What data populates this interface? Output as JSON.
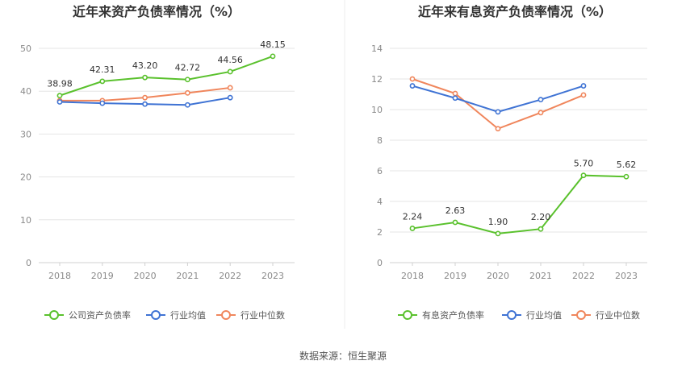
{
  "source_text": "数据来源：恒生聚源",
  "colors": {
    "company": "#5ac12d",
    "mean": "#3f73d4",
    "median": "#f0865c",
    "grid": "#e6e6e6",
    "axis": "#d0d0d0"
  },
  "chart_data": [
    {
      "type": "line",
      "title": "近年来资产负债率情况（%）",
      "categories": [
        "2018",
        "2019",
        "2020",
        "2021",
        "2022",
        "2023"
      ],
      "ylim": [
        0,
        50
      ],
      "yticks": [
        0,
        10,
        20,
        30,
        40,
        50
      ],
      "grid": true,
      "legend_placement": "bottom",
      "series": [
        {
          "name": "公司资产负债率",
          "color_key": "company",
          "values": [
            38.98,
            42.31,
            43.2,
            42.72,
            44.56,
            48.15
          ],
          "labels": [
            "38.98",
            "42.31",
            "43.20",
            "42.72",
            "44.56",
            "48.15"
          ]
        },
        {
          "name": "行业均值",
          "color_key": "mean",
          "values": [
            37.5,
            37.2,
            37.0,
            36.8,
            38.5,
            null
          ]
        },
        {
          "name": "行业中位数",
          "color_key": "median",
          "values": [
            37.8,
            37.8,
            38.5,
            39.6,
            40.8,
            null
          ]
        }
      ]
    },
    {
      "type": "line",
      "title": "近年来有息资产负债率情况（%）",
      "categories": [
        "2018",
        "2019",
        "2020",
        "2021",
        "2022",
        "2023"
      ],
      "ylim": [
        0,
        14
      ],
      "yticks": [
        0,
        2,
        4,
        6,
        8,
        10,
        12,
        14
      ],
      "grid": true,
      "legend_placement": "bottom",
      "series": [
        {
          "name": "有息资产负债率",
          "color_key": "company",
          "values": [
            2.24,
            2.63,
            1.9,
            2.2,
            5.7,
            5.62
          ],
          "labels": [
            "2.24",
            "2.63",
            "1.90",
            "2.20",
            "5.70",
            "5.62"
          ]
        },
        {
          "name": "行业均值",
          "color_key": "mean",
          "values": [
            11.55,
            10.75,
            9.85,
            10.65,
            11.55,
            null
          ]
        },
        {
          "name": "行业中位数",
          "color_key": "median",
          "values": [
            12.0,
            11.05,
            8.75,
            9.8,
            10.95,
            null
          ]
        }
      ]
    }
  ]
}
